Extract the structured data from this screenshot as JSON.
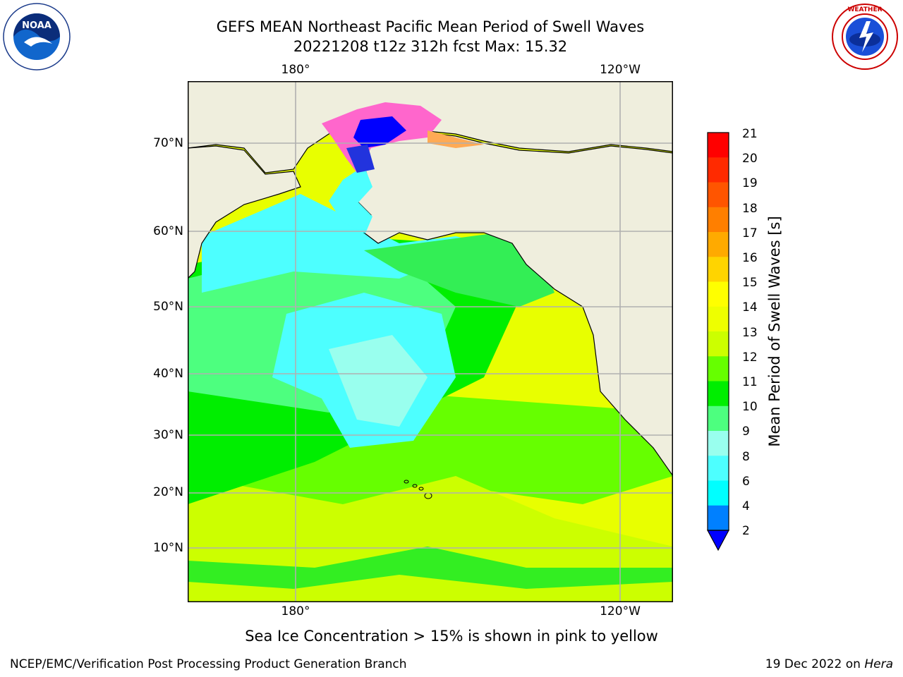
{
  "header": {
    "title_line1": "GEFS MEAN Northeast Pacific Mean Period of Swell Waves",
    "title_line2": "20221208 t12z 312h fcst   Max: 15.32"
  },
  "logos": {
    "left": {
      "name": "NOAA",
      "ring_text": "NATIONAL OCEANIC AND ATMOSPHERIC ADMINISTRATION · U.S. DEPARTMENT OF COMMERCE"
    },
    "right": {
      "name": "NATIONAL WEATHER SERVICE"
    }
  },
  "map": {
    "lon_labels": [
      "180°",
      "120°W"
    ],
    "lat_labels": [
      "70°N",
      "60°N",
      "50°N",
      "40°N",
      "30°N",
      "20°N",
      "10°N"
    ],
    "colors": {
      "land": "#efeedd",
      "grid": "#b0b0b0",
      "frame": "#000000"
    }
  },
  "colorbar": {
    "label": "Mean Period of Swell Waves [s]",
    "ticks": [
      "21",
      "20",
      "19",
      "18",
      "17",
      "16",
      "15",
      "14",
      "13",
      "12",
      "11",
      "10",
      "9",
      "8",
      "6",
      "4",
      "2"
    ],
    "colors": [
      "#ff0000",
      "#ff2a00",
      "#ff5500",
      "#ff7f00",
      "#ffaa00",
      "#ffd400",
      "#ffff00",
      "#eeff00",
      "#ccff00",
      "#66ff00",
      "#00ee00",
      "#4dff7f",
      "#99ffee",
      "#4dffff",
      "#00ffff",
      "#0080ff"
    ],
    "extend_color": "#0000ff"
  },
  "footer": {
    "note": "Sea Ice Concentration > 15% is shown in pink to yellow",
    "credit": "NCEP/EMC/Verification Post Processing Product Generation Branch",
    "date": "19 Dec 2022 on",
    "host": "Hera"
  }
}
